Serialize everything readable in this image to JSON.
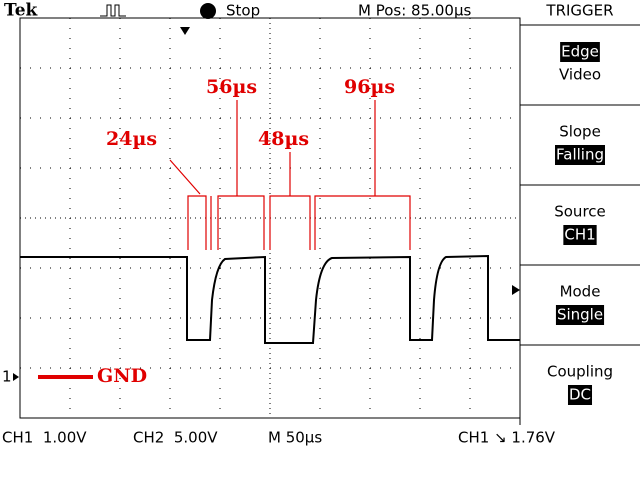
{
  "header": {
    "brand": "Tek",
    "status": "Stop",
    "position": "M Pos: 85.00µs",
    "menu_title": "TRIGGER"
  },
  "menu": [
    {
      "top": "Edge",
      "bottom": "Video"
    },
    {
      "top": "Slope",
      "bottom": "Falling"
    },
    {
      "top": "Source",
      "bottom": "CH1"
    },
    {
      "top": "Mode",
      "bottom": "Single"
    },
    {
      "top": "Coupling",
      "bottom": "DC"
    }
  ],
  "annotations": {
    "a1": "24µs",
    "a2": "56µs",
    "a3": "48µs",
    "a4": "96µs",
    "gnd": "GND"
  },
  "channel_marker": "1",
  "footer": {
    "ch1": "CH1  1.00V",
    "ch2": "CH2  5.00V",
    "time": "M 50µs",
    "trigger": "CH1 ↘ 1.76V"
  }
}
